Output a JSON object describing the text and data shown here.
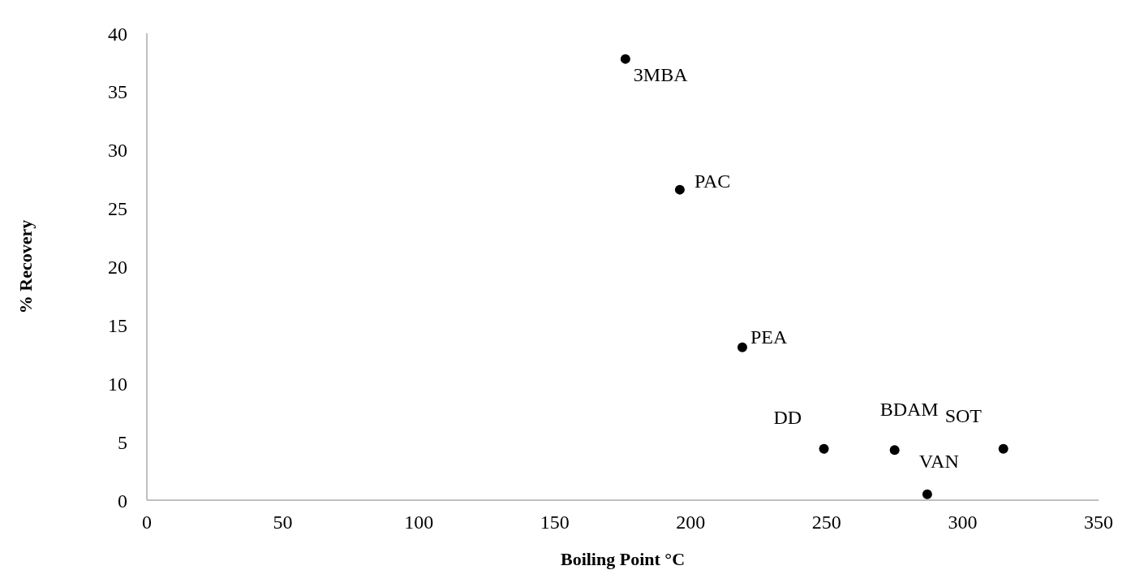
{
  "chart_data": {
    "type": "scatter",
    "xlabel": "Boiling Point °C",
    "ylabel": "% Recovery",
    "x": [
      176,
      196,
      219,
      249,
      275,
      287,
      315
    ],
    "series": [
      {
        "color": "#000000",
        "values": [
          37.8,
          26.6,
          13.1,
          4.4,
          4.3,
          0.5,
          4.4
        ]
      }
    ],
    "xlim": [
      0,
      350
    ],
    "xticks": [
      0,
      50,
      100,
      150,
      200,
      250,
      300,
      350
    ],
    "ylim": [
      0,
      40
    ],
    "yticks": [
      0,
      5,
      10,
      15,
      20,
      25,
      30,
      35,
      40
    ],
    "grid": false,
    "legend": false,
    "marker": "circle",
    "annotations": [
      {
        "text": "3MBA",
        "x": 176,
        "y": 37.8
      },
      {
        "text": "PAC",
        "x": 196,
        "y": 26.6
      },
      {
        "text": "PEA",
        "x": 219,
        "y": 13.1
      },
      {
        "text": "DD",
        "x": 249,
        "y": 4.4
      },
      {
        "text": "BDAM",
        "x": 275,
        "y": 4.3
      },
      {
        "text": "VAN",
        "x": 287,
        "y": 0.5
      },
      {
        "text": "SOT",
        "x": 315,
        "y": 4.4
      }
    ]
  }
}
